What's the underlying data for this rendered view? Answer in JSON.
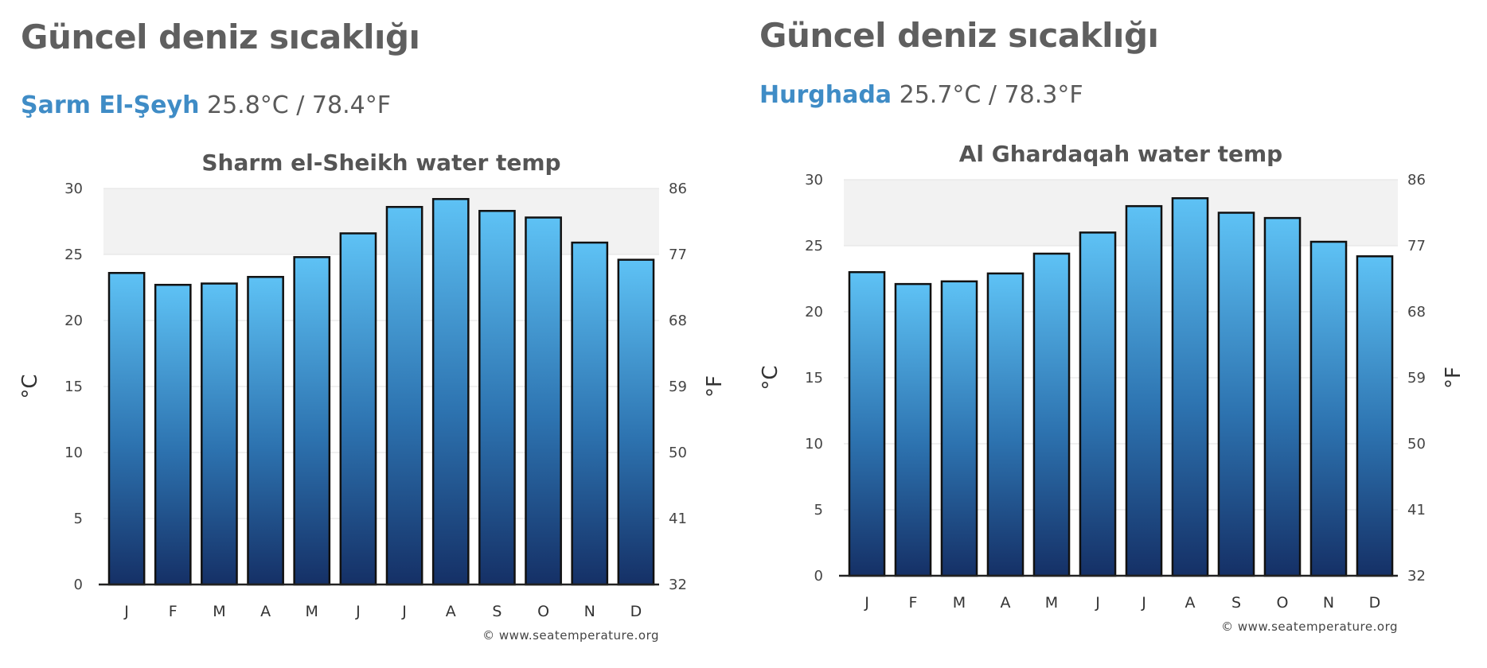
{
  "panels": [
    {
      "heading": "Güncel deniz sıcaklığı",
      "city": "Şarm El-Şeyh",
      "reading": "25.8°C / 78.4°F"
    },
    {
      "heading": "Güncel deniz sıcaklığı",
      "city": "Hurghada",
      "reading": "25.7°C / 78.3°F"
    }
  ],
  "colors": {
    "bar_top": "#5ec2f5",
    "bar_bottom": "#153066",
    "bar_outline": "#111111",
    "band": "#f2f2f2",
    "heading": "#5f5f5f",
    "city": "#3f8cc6"
  },
  "chart_data": [
    {
      "type": "bar",
      "title": "Sharm el-Sheikh water temp",
      "categories": [
        "J",
        "F",
        "M",
        "A",
        "M",
        "J",
        "J",
        "A",
        "S",
        "O",
        "N",
        "D"
      ],
      "values": [
        23.6,
        22.7,
        22.8,
        23.3,
        24.8,
        26.6,
        28.6,
        29.2,
        28.3,
        27.8,
        25.9,
        24.6
      ],
      "ylabel": "°C",
      "ylabel_right": "°F",
      "ylim": [
        0,
        30
      ],
      "yticks": [
        "0",
        "5",
        "10",
        "15",
        "20",
        "25",
        "30"
      ],
      "yticks_right": [
        "32",
        "41",
        "50",
        "59",
        "68",
        "77",
        "86"
      ],
      "band": [
        25,
        30
      ],
      "credit": "© www.seatemperature.org",
      "legend": "none"
    },
    {
      "type": "bar",
      "title": "Al Ghardaqah water temp",
      "categories": [
        "J",
        "F",
        "M",
        "A",
        "M",
        "J",
        "J",
        "A",
        "S",
        "O",
        "N",
        "D"
      ],
      "values": [
        23.0,
        22.1,
        22.3,
        22.9,
        24.4,
        26.0,
        28.0,
        28.6,
        27.5,
        27.1,
        25.3,
        24.2
      ],
      "ylabel": "°C",
      "ylabel_right": "°F",
      "ylim": [
        0,
        30
      ],
      "yticks": [
        "0",
        "5",
        "10",
        "15",
        "20",
        "25",
        "30"
      ],
      "yticks_right": [
        "32",
        "41",
        "50",
        "59",
        "68",
        "77",
        "86"
      ],
      "band": [
        25,
        30
      ],
      "credit": "© www.seatemperature.org",
      "legend": "none"
    }
  ]
}
